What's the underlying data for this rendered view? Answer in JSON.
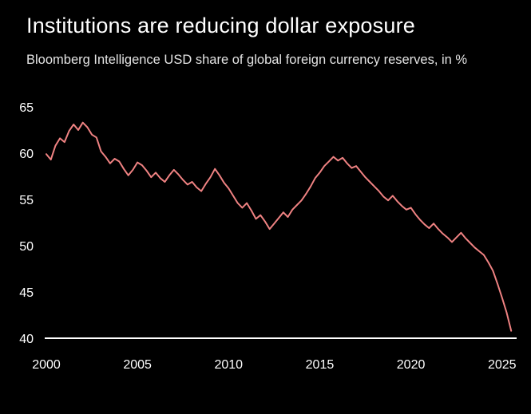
{
  "header": {
    "title": "Institutions are reducing dollar exposure",
    "subtitle": "Bloomberg Intelligence USD share of global foreign currency reserves, in %"
  },
  "colors": {
    "background": "#000000",
    "title_text": "#ffffff",
    "subtitle_text": "#e4e4e4",
    "tick_text": "#ffffff"
  },
  "chart_data": {
    "type": "line",
    "title": "Institutions are reducing dollar exposure",
    "subtitle": "Bloomberg Intelligence USD share of global foreign currency reserves, in %",
    "xlabel": "",
    "ylabel": "USD share of global foreign currency reserves, in %",
    "grid": false,
    "legend_position": "none",
    "line_color": "#ef8282",
    "axis_color": "#ffffff",
    "background": "#000000",
    "ylim": [
      40,
      65
    ],
    "x_range": [
      2000,
      2025.8
    ],
    "yticks": [
      65,
      60,
      55,
      50,
      45,
      40
    ],
    "xticks": [
      2000,
      2005,
      2010,
      2015,
      2020,
      2025
    ],
    "series": [
      {
        "name": "USD share of global foreign currency reserves (%)",
        "x": [
          2000,
          2000.25,
          2000.5,
          2000.75,
          2001,
          2001.25,
          2001.5,
          2001.75,
          2002,
          2002.25,
          2002.5,
          2002.75,
          2003,
          2003.25,
          2003.5,
          2003.75,
          2004,
          2004.25,
          2004.5,
          2004.75,
          2005,
          2005.25,
          2005.5,
          2005.75,
          2006,
          2006.25,
          2006.5,
          2006.75,
          2007,
          2007.25,
          2007.5,
          2007.75,
          2008,
          2008.25,
          2008.5,
          2008.75,
          2009,
          2009.25,
          2009.5,
          2009.75,
          2010,
          2010.25,
          2010.5,
          2010.75,
          2011,
          2011.25,
          2011.5,
          2011.75,
          2012,
          2012.25,
          2012.5,
          2012.75,
          2013,
          2013.25,
          2013.5,
          2013.75,
          2014,
          2014.25,
          2014.5,
          2014.75,
          2015,
          2015.25,
          2015.5,
          2015.75,
          2016,
          2016.25,
          2016.5,
          2016.75,
          2017,
          2017.25,
          2017.5,
          2017.75,
          2018,
          2018.25,
          2018.5,
          2018.75,
          2019,
          2019.25,
          2019.5,
          2019.75,
          2020,
          2020.25,
          2020.5,
          2020.75,
          2021,
          2021.25,
          2021.5,
          2021.75,
          2022,
          2022.25,
          2022.5,
          2022.75,
          2023,
          2023.25,
          2023.5,
          2023.75,
          2024,
          2024.25,
          2024.5,
          2024.75,
          2025,
          2025.25,
          2025.5
        ],
        "y": [
          59.9,
          59.3,
          60.8,
          61.6,
          61.2,
          62.4,
          63.1,
          62.5,
          63.3,
          62.8,
          62.0,
          61.7,
          60.2,
          59.6,
          58.9,
          59.4,
          59.1,
          58.3,
          57.6,
          58.2,
          59.0,
          58.7,
          58.1,
          57.4,
          57.9,
          57.3,
          56.9,
          57.6,
          58.2,
          57.7,
          57.1,
          56.6,
          56.9,
          56.3,
          55.9,
          56.7,
          57.4,
          58.3,
          57.6,
          56.8,
          56.2,
          55.4,
          54.6,
          54.1,
          54.6,
          53.8,
          52.9,
          53.3,
          52.6,
          51.8,
          52.4,
          53.0,
          53.6,
          53.1,
          53.9,
          54.4,
          54.9,
          55.6,
          56.4,
          57.3,
          57.9,
          58.6,
          59.1,
          59.6,
          59.2,
          59.5,
          58.9,
          58.4,
          58.6,
          58.0,
          57.4,
          56.9,
          56.4,
          55.9,
          55.3,
          54.9,
          55.4,
          54.8,
          54.3,
          53.9,
          54.1,
          53.4,
          52.8,
          52.3,
          51.9,
          52.4,
          51.8,
          51.3,
          50.9,
          50.4,
          50.9,
          51.4,
          50.8,
          50.3,
          49.8,
          49.4,
          49.0,
          48.2,
          47.3,
          45.9,
          44.4,
          42.8,
          40.8
        ]
      }
    ]
  }
}
